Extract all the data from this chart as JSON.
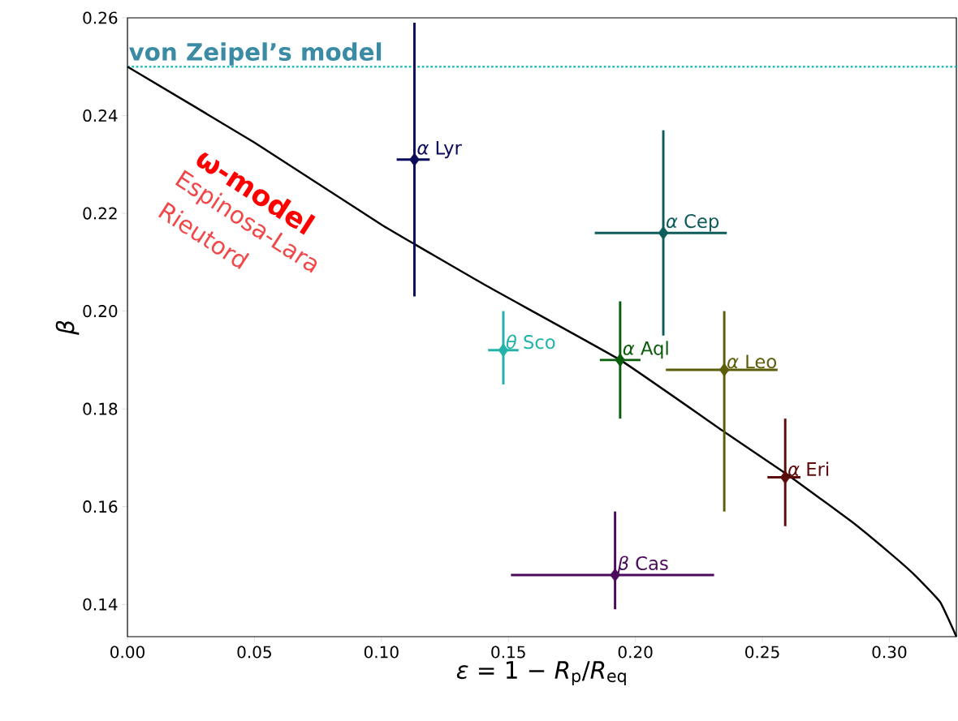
{
  "chart_data": {
    "type": "scatter",
    "xlabel": "*ε* = 1 − *R*$_{p}$/*R*$_{eq}$",
    "ylabel": "*β*",
    "xlim": [
      0,
      0.3264
    ],
    "ylim": [
      0.1334,
      0.26
    ],
    "xticks": [
      {
        "value": 0,
        "label": "0.00"
      },
      0.05,
      {
        "value": 0.1,
        "label": "0.10"
      },
      0.15,
      {
        "value": 0.2,
        "label": "0.20"
      },
      0.25,
      {
        "value": 0.3,
        "label": "0.30"
      }
    ],
    "yticks": [
      0.14,
      0.16,
      0.18,
      {
        "value": 0.2,
        "label": "0.20"
      },
      0.22,
      0.24,
      0.26
    ],
    "grid": false,
    "marker": "diamond",
    "annotations": [
      "ω-model",
      "Espinosa-Lara",
      "Rieutord"
    ],
    "ref_lines": [
      {
        "axis": "y",
        "value": 0.25,
        "label": "von Zeipel’s model",
        "color": "#20c0c0",
        "line_style": "dotted"
      }
    ],
    "series": [
      {
        "type": "line",
        "marker": "none",
        "color": "#000000",
        "x": [
          0,
          0.05,
          0.1,
          0.1413,
          0.194,
          0.235,
          0.26,
          0.285,
          0.3,
          0.31,
          0.32,
          0.3264
        ],
        "values": [
          0.25,
          0.2345,
          0.2177,
          0.2052,
          0.19,
          0.1753,
          0.1665,
          0.157,
          0.1506,
          0.146,
          0.1405,
          0.1334
        ]
      },
      {
        "name": "*α* Lyr",
        "color": "#0b0b5c",
        "x": [
          0.113
        ],
        "values": [
          0.231
        ],
        "errors": [
          [
            0.203,
            0.259
          ]
        ],
        "xerrors": [
          [
            0.106,
            0.119
          ]
        ]
      },
      {
        "name": "*α* Cep",
        "color": "#0e5c5c",
        "x": [
          0.211
        ],
        "values": [
          0.216
        ],
        "errors": [
          [
            0.195,
            0.237
          ]
        ],
        "xerrors": [
          [
            0.184,
            0.236
          ]
        ]
      },
      {
        "name": "*θ* Sco",
        "color": "#22b2aa",
        "x": [
          0.148
        ],
        "values": [
          0.192
        ],
        "errors": [
          [
            0.185,
            0.2
          ]
        ],
        "xerrors": [
          [
            0.142,
            0.154
          ]
        ]
      },
      {
        "name": "*α* Aql",
        "color": "#0b5c0b",
        "x": [
          0.194
        ],
        "values": [
          0.19
        ],
        "errors": [
          [
            0.178,
            0.202
          ]
        ],
        "xerrors": [
          [
            0.186,
            0.202
          ]
        ]
      },
      {
        "name": "*α* Leo",
        "color": "#5c5c0b",
        "x": [
          0.235
        ],
        "values": [
          0.188
        ],
        "errors": [
          [
            0.159,
            0.2
          ]
        ],
        "xerrors": [
          [
            0.212,
            0.256
          ]
        ]
      },
      {
        "name": "*α* Eri",
        "color": "#5c0b0b",
        "x": [
          0.259
        ],
        "values": [
          0.166
        ],
        "errors": [
          [
            0.156,
            0.178
          ]
        ],
        "xerrors": [
          [
            0.252,
            0.265
          ]
        ]
      },
      {
        "name": "*β* Cas",
        "color": "#4c0b5c",
        "x": [
          0.192
        ],
        "values": [
          0.146
        ],
        "errors": [
          [
            0.139,
            0.159
          ]
        ],
        "xerrors": [
          [
            0.151,
            0.231
          ]
        ]
      }
    ]
  }
}
